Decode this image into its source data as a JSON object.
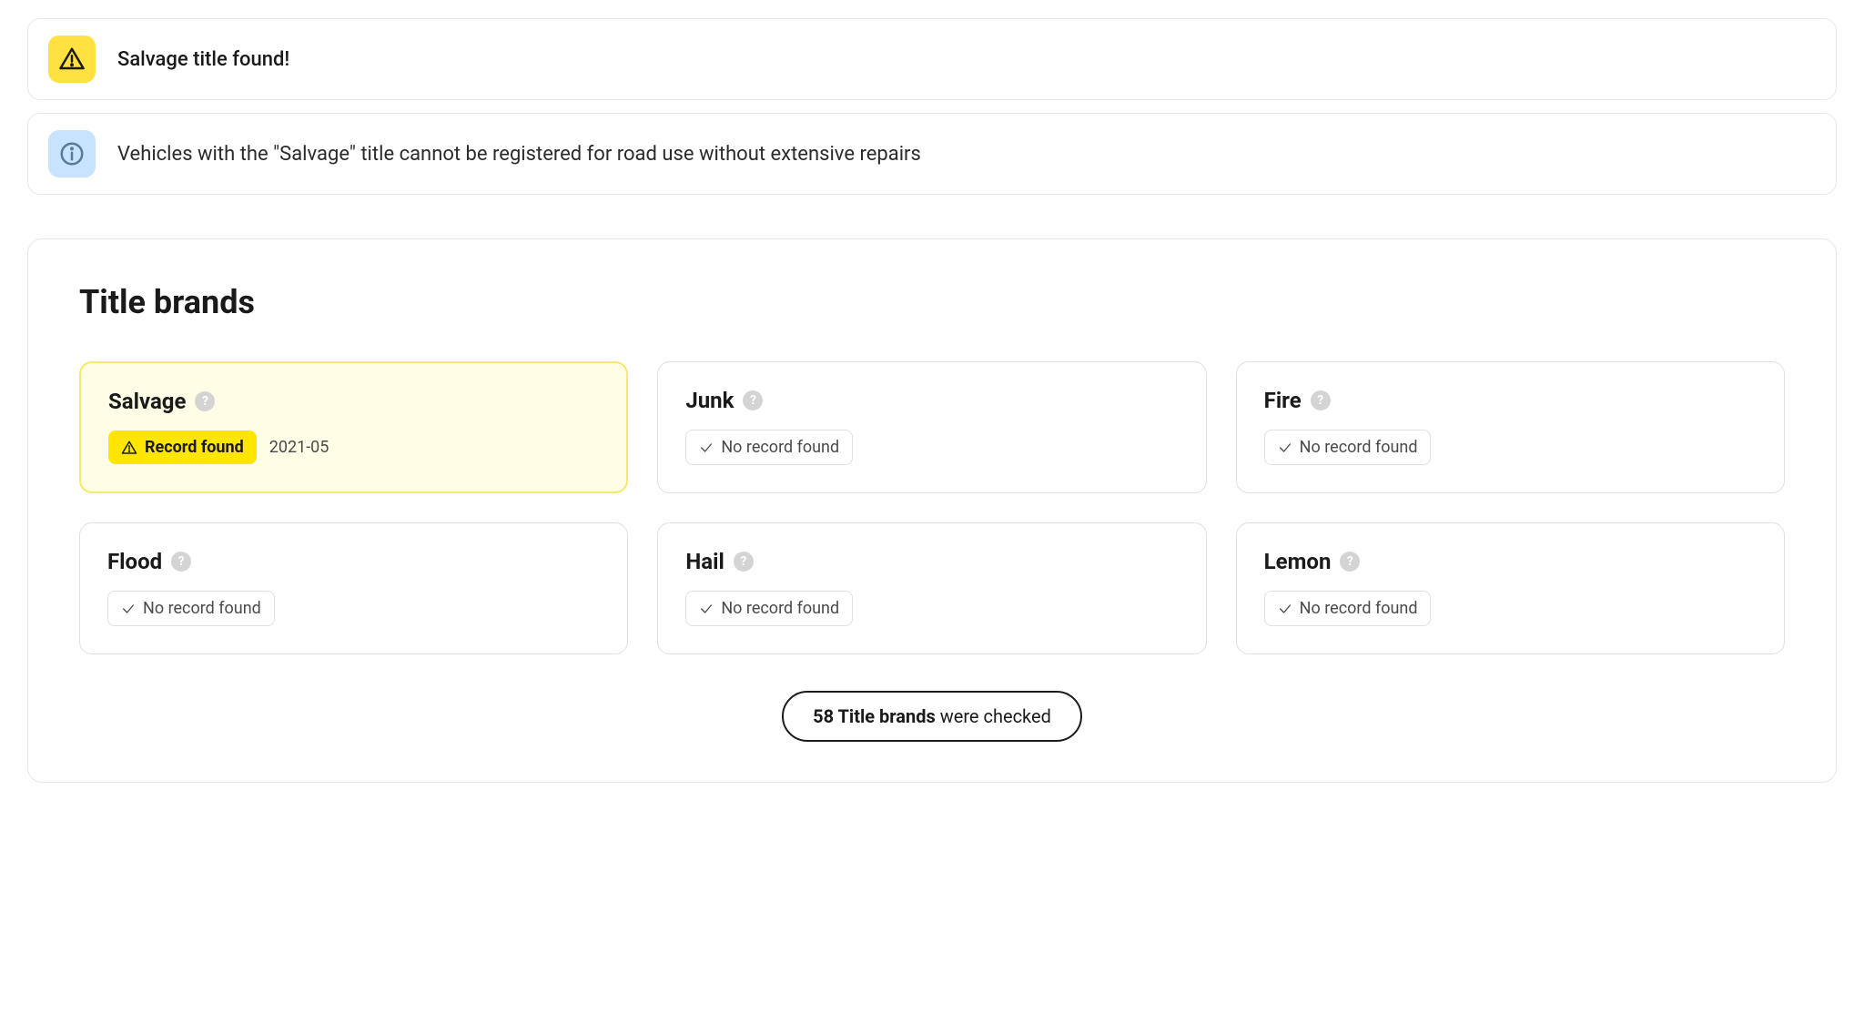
{
  "alerts": {
    "warning": {
      "text": "Salvage title found!",
      "icon_bg": "#FFE23F",
      "icon_stroke": "#1a1a1a"
    },
    "info": {
      "text": "Vehicles with the \"Salvage\" title cannot be registered for road use without extensive repairs",
      "icon_bg": "#C8E3FF",
      "icon_stroke": "#5a7a9a"
    }
  },
  "section": {
    "title": "Title brands",
    "summary_count": "58",
    "summary_label_bold": "Title brands",
    "summary_label_rest": "were checked",
    "no_record_label": "No record found",
    "record_found_label": "Record found"
  },
  "brands": [
    {
      "name": "Salvage",
      "found": true,
      "date": "2021-05"
    },
    {
      "name": "Junk",
      "found": false,
      "date": ""
    },
    {
      "name": "Fire",
      "found": false,
      "date": ""
    },
    {
      "name": "Flood",
      "found": false,
      "date": ""
    },
    {
      "name": "Hail",
      "found": false,
      "date": ""
    },
    {
      "name": "Lemon",
      "found": false,
      "date": ""
    }
  ],
  "colors": {
    "highlight_bg": "#FFFDE6",
    "highlight_border": "#F6E96B",
    "badge_found_bg": "#FFE600",
    "card_border": "#e0e0e0"
  }
}
